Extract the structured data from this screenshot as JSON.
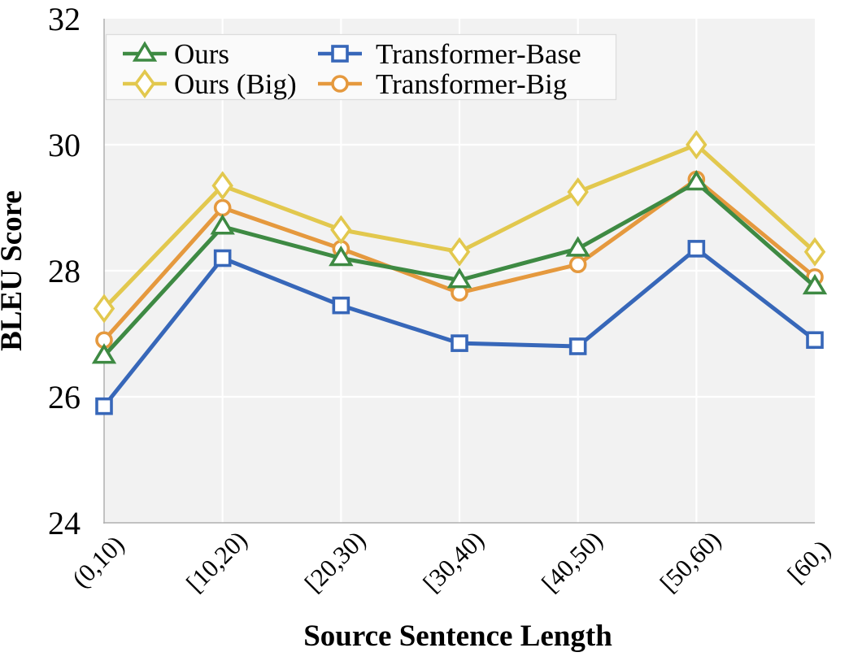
{
  "chart_data": {
    "type": "line",
    "xlabel": "Source Sentence Length",
    "ylabel": "BLEU Score",
    "ylim": [
      24,
      32
    ],
    "yticks": [
      24,
      26,
      28,
      30,
      32
    ],
    "grid": true,
    "legend": {
      "position": "upper-left",
      "columns": 2
    },
    "categories": [
      "(0,10)",
      "[10,20)",
      "[20,30)",
      "[30,40)",
      "[40,50)",
      "[50,60)",
      "[60,)"
    ],
    "series": [
      {
        "name": "Ours",
        "marker": "triangle",
        "color": "#3e8a43",
        "values": [
          26.65,
          28.7,
          28.2,
          27.85,
          28.35,
          29.4,
          27.75
        ]
      },
      {
        "name": "Ours (Big)",
        "marker": "diamond",
        "color": "#e2c84e",
        "values": [
          27.4,
          29.35,
          28.65,
          28.3,
          29.25,
          30.0,
          28.3
        ]
      },
      {
        "name": "Transformer-Base",
        "marker": "square",
        "color": "#3767b9",
        "values": [
          25.85,
          28.2,
          27.45,
          26.85,
          26.8,
          28.35,
          26.9
        ]
      },
      {
        "name": "Transformer-Big",
        "marker": "circle",
        "color": "#e5993e",
        "values": [
          26.9,
          29.0,
          28.35,
          27.65,
          28.1,
          29.45,
          27.9
        ]
      }
    ],
    "draw_order": [
      "Transformer-Base",
      "Transformer-Big",
      "Ours",
      "Ours (Big)"
    ],
    "colors": {
      "figure_background": "#ffffff",
      "plot_background": "#f2f2f2",
      "grid": "#ffffff",
      "spine": "#b0b0b0",
      "text": "#000000",
      "legend_background": "#fafafa",
      "legend_border": "#dcdcdc"
    }
  }
}
